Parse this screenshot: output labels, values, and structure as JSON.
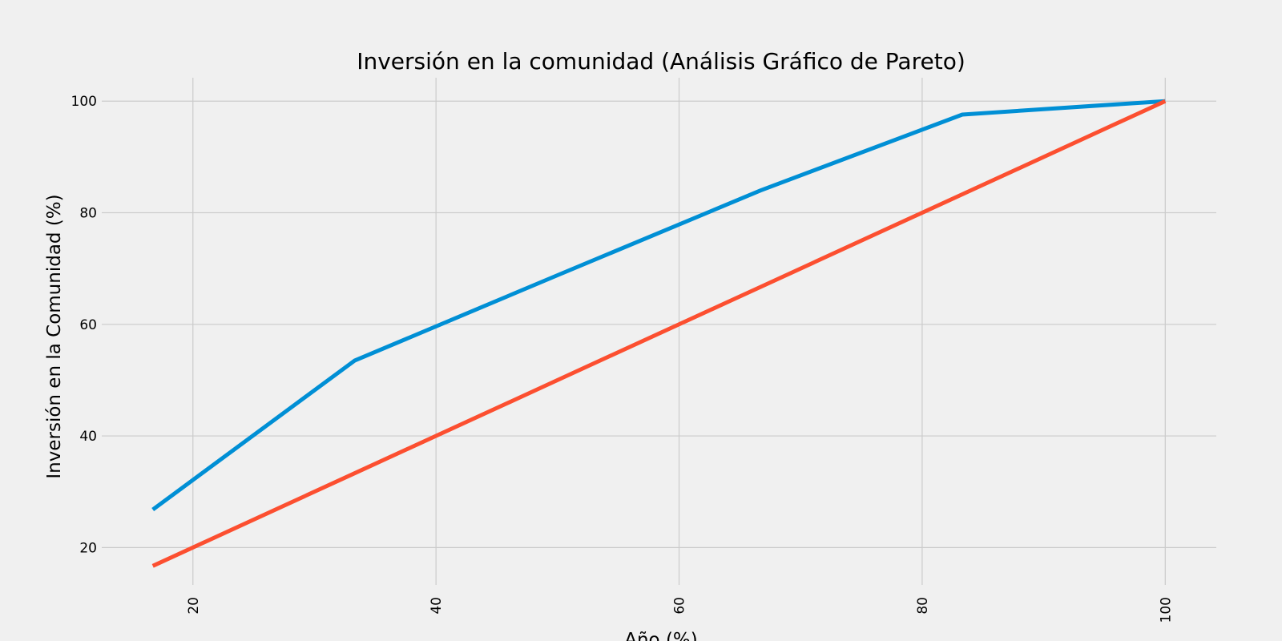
{
  "chart_data": {
    "type": "line",
    "title": "Inversión en la comunidad (Análisis Gráfico de Pareto)",
    "xlabel": "Año (%)",
    "ylabel": "Inversión en la Comunidad (%)",
    "xlim": [
      12.5,
      104.2
    ],
    "ylim": [
      13.3,
      104.2
    ],
    "x_ticks": [
      20,
      40,
      60,
      80,
      100
    ],
    "y_ticks": [
      20,
      40,
      60,
      80,
      100
    ],
    "grid": true,
    "series": [
      {
        "color": "#008fd5",
        "x": [
          16.7,
          33.3,
          50.0,
          66.7,
          83.3,
          100.0
        ],
        "y": [
          26.8,
          53.5,
          68.8,
          84.0,
          97.6,
          100.0
        ]
      },
      {
        "color": "#fc4f30",
        "x": [
          16.7,
          33.3,
          50.0,
          66.7,
          83.3,
          100.0
        ],
        "y": [
          16.7,
          33.3,
          50.0,
          66.7,
          83.3,
          100.0
        ]
      }
    ]
  }
}
